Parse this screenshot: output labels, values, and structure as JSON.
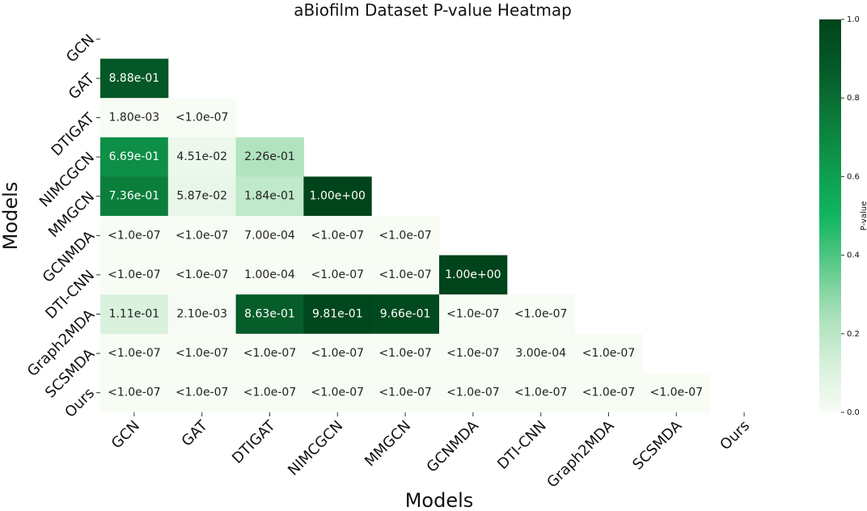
{
  "chart_data": {
    "type": "heatmap",
    "title": "aBiofilm Dataset P-value Heatmap",
    "x_label": "Models",
    "y_label": "Models",
    "categories": [
      "GCN",
      "GAT",
      "DTIGAT",
      "NIMCGCN",
      "MMGCN",
      "GCNMDA",
      "DTI-CNN",
      "Graph2MDA",
      "SCSMDA",
      "Ours"
    ],
    "values": [
      [
        null,
        null,
        null,
        null,
        null,
        null,
        null,
        null,
        null,
        null
      ],
      [
        0.888,
        null,
        null,
        null,
        null,
        null,
        null,
        null,
        null,
        null
      ],
      [
        0.0018,
        1e-07,
        null,
        null,
        null,
        null,
        null,
        null,
        null,
        null
      ],
      [
        0.669,
        0.0451,
        0.226,
        null,
        null,
        null,
        null,
        null,
        null,
        null
      ],
      [
        0.736,
        0.0587,
        0.184,
        1.0,
        null,
        null,
        null,
        null,
        null,
        null
      ],
      [
        1e-07,
        1e-07,
        0.0007,
        1e-07,
        1e-07,
        null,
        null,
        null,
        null,
        null
      ],
      [
        1e-07,
        1e-07,
        0.0001,
        1e-07,
        1e-07,
        1.0,
        null,
        null,
        null,
        null
      ],
      [
        0.111,
        0.0021,
        0.863,
        0.981,
        0.966,
        1e-07,
        1e-07,
        null,
        null,
        null
      ],
      [
        1e-07,
        1e-07,
        1e-07,
        1e-07,
        1e-07,
        1e-07,
        0.0003,
        1e-07,
        null,
        null
      ],
      [
        1e-07,
        1e-07,
        1e-07,
        1e-07,
        1e-07,
        1e-07,
        1e-07,
        1e-07,
        1e-07,
        null
      ]
    ],
    "value_labels": [
      [
        null,
        null,
        null,
        null,
        null,
        null,
        null,
        null,
        null,
        null
      ],
      [
        "8.88e-01",
        null,
        null,
        null,
        null,
        null,
        null,
        null,
        null,
        null
      ],
      [
        "1.80e-03",
        "<1.0e-07",
        null,
        null,
        null,
        null,
        null,
        null,
        null,
        null
      ],
      [
        "6.69e-01",
        "4.51e-02",
        "2.26e-01",
        null,
        null,
        null,
        null,
        null,
        null,
        null
      ],
      [
        "7.36e-01",
        "5.87e-02",
        "1.84e-01",
        "1.00e+00",
        null,
        null,
        null,
        null,
        null,
        null
      ],
      [
        "<1.0e-07",
        "<1.0e-07",
        "7.00e-04",
        "<1.0e-07",
        "<1.0e-07",
        null,
        null,
        null,
        null,
        null
      ],
      [
        "<1.0e-07",
        "<1.0e-07",
        "1.00e-04",
        "<1.0e-07",
        "<1.0e-07",
        "1.00e+00",
        null,
        null,
        null,
        null
      ],
      [
        "1.11e-01",
        "2.10e-03",
        "8.63e-01",
        "9.81e-01",
        "9.66e-01",
        "<1.0e-07",
        "<1.0e-07",
        null,
        null,
        null
      ],
      [
        "<1.0e-07",
        "<1.0e-07",
        "<1.0e-07",
        "<1.0e-07",
        "<1.0e-07",
        "<1.0e-07",
        "3.00e-04",
        "<1.0e-07",
        null,
        null
      ],
      [
        "<1.0e-07",
        "<1.0e-07",
        "<1.0e-07",
        "<1.0e-07",
        "<1.0e-07",
        "<1.0e-07",
        "<1.0e-07",
        "<1.0e-07",
        "<1.0e-07",
        null
      ]
    ],
    "colorscale": [
      "#f7fcf5",
      "#d5f0da",
      "#a8e0b8",
      "#5cc98a",
      "#10b560",
      "#0e9a4c",
      "#0b7a3a",
      "#055a28",
      "#00441b"
    ],
    "clim": [
      0,
      1
    ],
    "colorbar_label": "P-value",
    "colorbar_ticks": [
      {
        "value": 0,
        "label": "0.0"
      },
      {
        "value": 0.2,
        "label": "0.2"
      },
      {
        "value": 0.4,
        "label": "0.4"
      },
      {
        "value": 0.6,
        "label": "0.6"
      },
      {
        "value": 0.8,
        "label": "0.8"
      },
      {
        "value": 1,
        "label": "1.0"
      }
    ]
  }
}
